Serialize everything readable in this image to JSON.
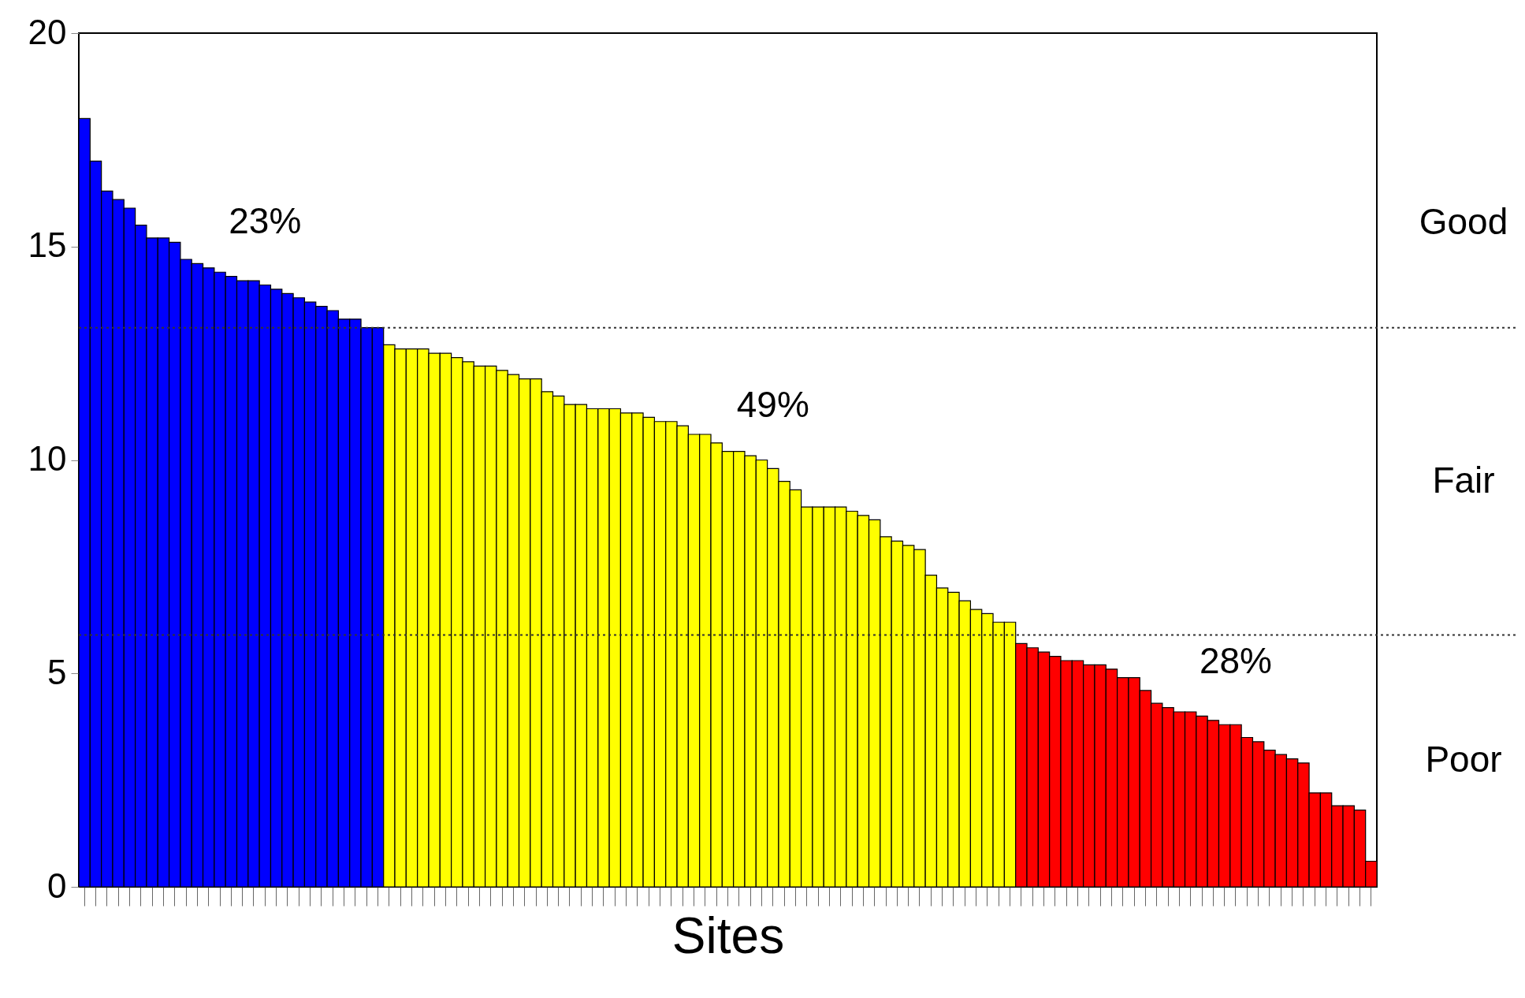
{
  "chart_data": {
    "type": "bar",
    "xlabel": "Sites",
    "categories": [
      null,
      null,
      null,
      null,
      null,
      null,
      null,
      null,
      null,
      null,
      null,
      null,
      null,
      null,
      null,
      null,
      null,
      null,
      null,
      null,
      null,
      null,
      null,
      null,
      null,
      null,
      null,
      null,
      null,
      null,
      null,
      null,
      null,
      null,
      null,
      null,
      null,
      null,
      null,
      null,
      null,
      null,
      null,
      null,
      null,
      null,
      null,
      null,
      null,
      null,
      null,
      null,
      null,
      null,
      null,
      null,
      null,
      null,
      null,
      null,
      null,
      null,
      null,
      null,
      null,
      null,
      null,
      null,
      null,
      null,
      null,
      null,
      null,
      null,
      null,
      null,
      null,
      null,
      null,
      null,
      null,
      null,
      null,
      null,
      null,
      null,
      null,
      null,
      null,
      null,
      null,
      null,
      null,
      null,
      null,
      null,
      null,
      null,
      null,
      null,
      null,
      null,
      null,
      null,
      null,
      null,
      null,
      null,
      null,
      null,
      null,
      null,
      null,
      null,
      null
    ],
    "values": [
      18.0,
      17.0,
      16.3,
      16.1,
      15.9,
      15.5,
      15.2,
      15.2,
      15.1,
      14.7,
      14.6,
      14.5,
      14.4,
      14.3,
      14.2,
      14.2,
      14.1,
      14.0,
      13.9,
      13.8,
      13.7,
      13.6,
      13.5,
      13.3,
      13.3,
      13.1,
      13.1,
      12.7,
      12.6,
      12.6,
      12.6,
      12.5,
      12.5,
      12.4,
      12.3,
      12.2,
      12.2,
      12.1,
      12.0,
      11.9,
      11.9,
      11.6,
      11.5,
      11.3,
      11.3,
      11.2,
      11.2,
      11.2,
      11.1,
      11.1,
      11.0,
      10.9,
      10.9,
      10.8,
      10.6,
      10.6,
      10.4,
      10.2,
      10.2,
      10.1,
      10.0,
      9.8,
      9.5,
      9.3,
      8.9,
      8.9,
      8.9,
      8.9,
      8.8,
      8.7,
      8.6,
      8.2,
      8.1,
      8.0,
      7.9,
      7.3,
      7.0,
      6.9,
      6.7,
      6.5,
      6.4,
      6.2,
      6.2,
      5.7,
      5.6,
      5.5,
      5.4,
      5.3,
      5.3,
      5.2,
      5.2,
      5.1,
      4.9,
      4.9,
      4.6,
      4.3,
      4.2,
      4.1,
      4.1,
      4.0,
      3.9,
      3.8,
      3.8,
      3.5,
      3.4,
      3.2,
      3.1,
      3.0,
      2.9,
      2.2,
      2.2,
      1.9,
      1.9,
      1.8,
      0.6
    ],
    "colors": [
      "#0000ff",
      "#0000ff",
      "#0000ff",
      "#0000ff",
      "#0000ff",
      "#0000ff",
      "#0000ff",
      "#0000ff",
      "#0000ff",
      "#0000ff",
      "#0000ff",
      "#0000ff",
      "#0000ff",
      "#0000ff",
      "#0000ff",
      "#0000ff",
      "#0000ff",
      "#0000ff",
      "#0000ff",
      "#0000ff",
      "#0000ff",
      "#0000ff",
      "#0000ff",
      "#0000ff",
      "#0000ff",
      "#0000ff",
      "#0000ff",
      "#ffff00",
      "#ffff00",
      "#ffff00",
      "#ffff00",
      "#ffff00",
      "#ffff00",
      "#ffff00",
      "#ffff00",
      "#ffff00",
      "#ffff00",
      "#ffff00",
      "#ffff00",
      "#ffff00",
      "#ffff00",
      "#ffff00",
      "#ffff00",
      "#ffff00",
      "#ffff00",
      "#ffff00",
      "#ffff00",
      "#ffff00",
      "#ffff00",
      "#ffff00",
      "#ffff00",
      "#ffff00",
      "#ffff00",
      "#ffff00",
      "#ffff00",
      "#ffff00",
      "#ffff00",
      "#ffff00",
      "#ffff00",
      "#ffff00",
      "#ffff00",
      "#ffff00",
      "#ffff00",
      "#ffff00",
      "#ffff00",
      "#ffff00",
      "#ffff00",
      "#ffff00",
      "#ffff00",
      "#ffff00",
      "#ffff00",
      "#ffff00",
      "#ffff00",
      "#ffff00",
      "#ffff00",
      "#ffff00",
      "#ffff00",
      "#ffff00",
      "#ffff00",
      "#ffff00",
      "#ffff00",
      "#ffff00",
      "#ffff00",
      "#ff0000",
      "#ff0000",
      "#ff0000",
      "#ff0000",
      "#ff0000",
      "#ff0000",
      "#ff0000",
      "#ff0000",
      "#ff0000",
      "#ff0000",
      "#ff0000",
      "#ff0000",
      "#ff0000",
      "#ff0000",
      "#ff0000",
      "#ff0000",
      "#ff0000",
      "#ff0000",
      "#ff0000",
      "#ff0000",
      "#ff0000",
      "#ff0000",
      "#ff0000",
      "#ff0000",
      "#ff0000",
      "#ff0000",
      "#ff0000",
      "#ff0000",
      "#ff0000",
      "#ff0000",
      "#ff0000",
      "#ff0000"
    ],
    "ylim": [
      0,
      20
    ],
    "yticks": [
      0,
      5,
      10,
      15,
      20
    ],
    "ref_lines": [
      {
        "axis": "y",
        "value": 13.1,
        "line_style": "dotted"
      },
      {
        "axis": "y",
        "value": 5.9,
        "line_style": "dotted"
      }
    ],
    "annotations": [
      "23%",
      "49%",
      "28%",
      "Good",
      "Fair",
      "Poor"
    ]
  }
}
